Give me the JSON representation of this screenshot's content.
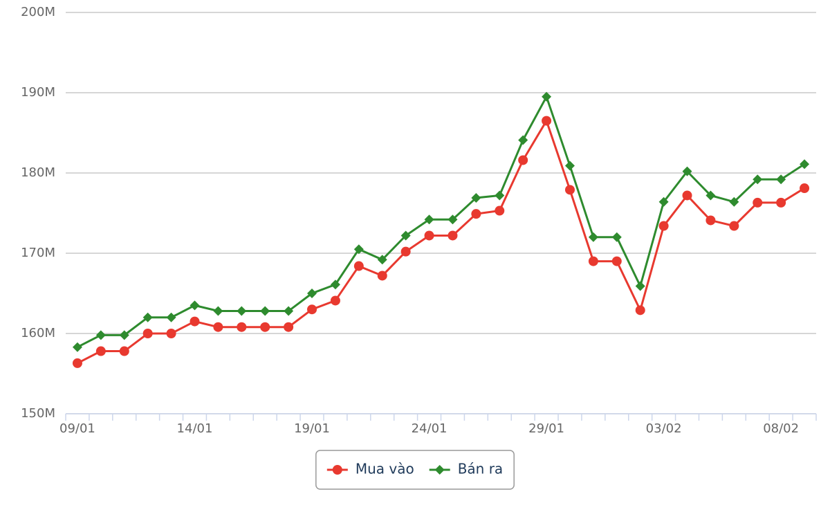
{
  "chart_data": {
    "type": "line",
    "categories": [
      "09/01",
      null,
      null,
      null,
      null,
      "14/01",
      null,
      null,
      null,
      null,
      "19/01",
      null,
      null,
      null,
      null,
      "24/01",
      null,
      null,
      null,
      null,
      "29/01",
      null,
      null,
      null,
      null,
      "03/02",
      null,
      null,
      null,
      null,
      "08/02",
      null
    ],
    "series": [
      {
        "name": "Mua vào",
        "color": "#e8392f",
        "marker": "circle",
        "values": [
          156.3,
          157.8,
          157.8,
          160.0,
          160.0,
          161.5,
          160.8,
          160.8,
          160.8,
          160.8,
          163.0,
          164.1,
          168.4,
          167.2,
          170.2,
          172.2,
          172.2,
          174.9,
          175.3,
          181.6,
          186.5,
          177.9,
          169.0,
          169.0,
          162.9,
          173.4,
          177.2,
          174.1,
          173.4,
          176.3,
          176.3,
          178.1
        ]
      },
      {
        "name": "Bán ra",
        "color": "#2e8b2e",
        "marker": "diamond",
        "values": [
          158.3,
          159.8,
          159.8,
          162.0,
          162.0,
          163.5,
          162.8,
          162.8,
          162.8,
          162.8,
          165.0,
          166.1,
          170.5,
          169.2,
          172.2,
          174.2,
          174.2,
          176.9,
          177.2,
          184.1,
          189.5,
          180.9,
          172.0,
          172.0,
          165.9,
          176.4,
          180.2,
          177.2,
          176.4,
          179.2,
          179.2,
          181.1
        ]
      }
    ],
    "ylim": [
      150,
      200
    ],
    "yticks": [
      {
        "value": 150,
        "label": "150M"
      },
      {
        "value": 160,
        "label": "160M"
      },
      {
        "value": 170,
        "label": "170M"
      },
      {
        "value": 180,
        "label": "180M"
      },
      {
        "value": 190,
        "label": "190M"
      },
      {
        "value": 200,
        "label": "200M"
      }
    ],
    "grid": true,
    "legend": "bottom"
  }
}
